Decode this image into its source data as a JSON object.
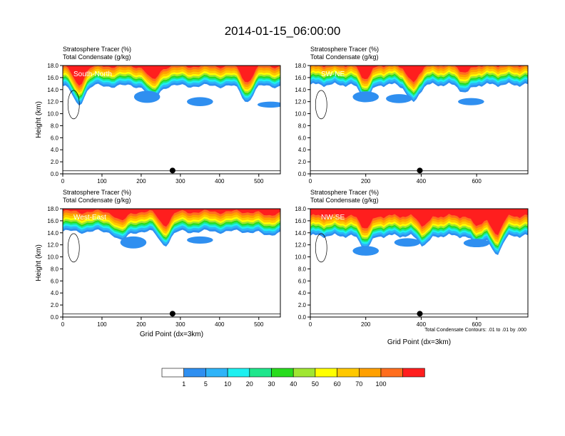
{
  "title": "2014-01-15_06:00:00",
  "colorbar": {
    "levels": [
      "1",
      "5",
      "10",
      "20",
      "30",
      "40",
      "50",
      "60",
      "70",
      "100"
    ],
    "colors": [
      "#ffffff",
      "#2f8ff0",
      "#2fb4f8",
      "#1ef0f0",
      "#1ee68c",
      "#28dc1e",
      "#a0e632",
      "#ffff00",
      "#ffc800",
      "#ffa000",
      "#ff6e1e",
      "#ff1e1e"
    ]
  },
  "contour_note": "Total Condensate Contours: .01 to .01 by .000",
  "chart_data": [
    {
      "type": "heatmap",
      "panel_label": "South-North",
      "subtitle_left": "Stratosphere Tracer",
      "subtitle_left_units": "(%)",
      "subtitle_left2": "Total Condensate",
      "subtitle_left2_units": "(g/kg)",
      "ylabel": "Height (km)",
      "xlabel": "",
      "xlim": [
        0,
        555
      ],
      "ylim": [
        0,
        18
      ],
      "xticks": [
        "0",
        "100",
        "200",
        "300",
        "400",
        "500"
      ],
      "xtick_values": [
        0,
        100,
        200,
        300,
        400,
        500
      ],
      "yticks": [
        "0.0",
        "2.0",
        "4.0",
        "6.0",
        "8.0",
        "10.0",
        "12.0",
        "14.0",
        "16.0",
        "18.0"
      ],
      "marker_x": 280,
      "tracer_base_km": 14.6,
      "dips": [
        [
          40,
          11.5
        ],
        [
          230,
          12.2
        ],
        [
          470,
          12.0
        ]
      ],
      "blobs": [
        [
          215,
          12.8,
          2.0
        ],
        [
          350,
          12.0,
          1.5
        ],
        [
          530,
          11.5,
          1.0
        ]
      ]
    },
    {
      "type": "heatmap",
      "panel_label": "SW-NE",
      "subtitle_left": "Stratosphere Tracer",
      "subtitle_left_units": "(%)",
      "subtitle_left2": "Total Condensate",
      "subtitle_left2_units": "(g/kg)",
      "ylabel": "",
      "xlabel": "",
      "xlim": [
        0,
        785
      ],
      "ylim": [
        0,
        18
      ],
      "xticks": [
        "0",
        "200",
        "400",
        "600"
      ],
      "xtick_values": [
        0,
        200,
        400,
        600
      ],
      "yticks": [
        "0.0",
        "2.0",
        "4.0",
        "6.0",
        "8.0",
        "10.0",
        "12.0",
        "14.0",
        "16.0",
        "18.0"
      ],
      "marker_x": 395,
      "tracer_base_km": 14.8,
      "dips": [
        [
          200,
          12.5
        ],
        [
          370,
          11.8
        ],
        [
          560,
          13.5
        ]
      ],
      "blobs": [
        [
          200,
          12.8,
          1.8
        ],
        [
          320,
          12.5,
          1.5
        ],
        [
          580,
          12.0,
          1.2
        ]
      ]
    },
    {
      "type": "heatmap",
      "panel_label": "West-East",
      "subtitle_left": "Stratosphere Tracer",
      "subtitle_left_units": "(%)",
      "subtitle_left2": "Total Condensate",
      "subtitle_left2_units": "(g/kg)",
      "ylabel": "Height (km)",
      "xlabel": "Grid Point (dx=3km)",
      "xlim": [
        0,
        555
      ],
      "ylim": [
        0,
        18
      ],
      "xticks": [
        "0",
        "100",
        "200",
        "300",
        "400",
        "500"
      ],
      "xtick_values": [
        0,
        100,
        200,
        300,
        400,
        500
      ],
      "yticks": [
        "0.0",
        "2.0",
        "4.0",
        "6.0",
        "8.0",
        "10.0",
        "12.0",
        "14.0",
        "16.0",
        "18.0"
      ],
      "marker_x": 280,
      "tracer_base_km": 14.2,
      "dips": [
        [
          150,
          12.6
        ],
        [
          260,
          12.0
        ],
        [
          520,
          13.5
        ]
      ],
      "blobs": [
        [
          180,
          12.4,
          2.0
        ],
        [
          350,
          12.8,
          1.2
        ]
      ]
    },
    {
      "type": "heatmap",
      "panel_label": "NW-SE",
      "subtitle_left": "Stratosphere Tracer",
      "subtitle_left_units": "(%)",
      "subtitle_left2": "Total Condensate",
      "subtitle_left2_units": "(g/kg)",
      "ylabel": "",
      "xlabel": "Grid Point (dx=3km)",
      "xlim": [
        0,
        785
      ],
      "ylim": [
        0,
        18
      ],
      "xticks": [
        "0",
        "200",
        "400",
        "600"
      ],
      "xtick_values": [
        0,
        200,
        400,
        600
      ],
      "yticks": [
        "0.0",
        "2.0",
        "4.0",
        "6.0",
        "8.0",
        "10.0",
        "12.0",
        "14.0",
        "16.0",
        "18.0"
      ],
      "marker_x": 395,
      "tracer_base_km": 13.5,
      "dips": [
        [
          200,
          11.5
        ],
        [
          410,
          12.0
        ],
        [
          600,
          12.0
        ],
        [
          670,
          10.5
        ]
      ],
      "blobs": [
        [
          200,
          11.0,
          1.6
        ],
        [
          350,
          12.4,
          1.4
        ],
        [
          600,
          12.3,
          1.4
        ]
      ]
    }
  ]
}
